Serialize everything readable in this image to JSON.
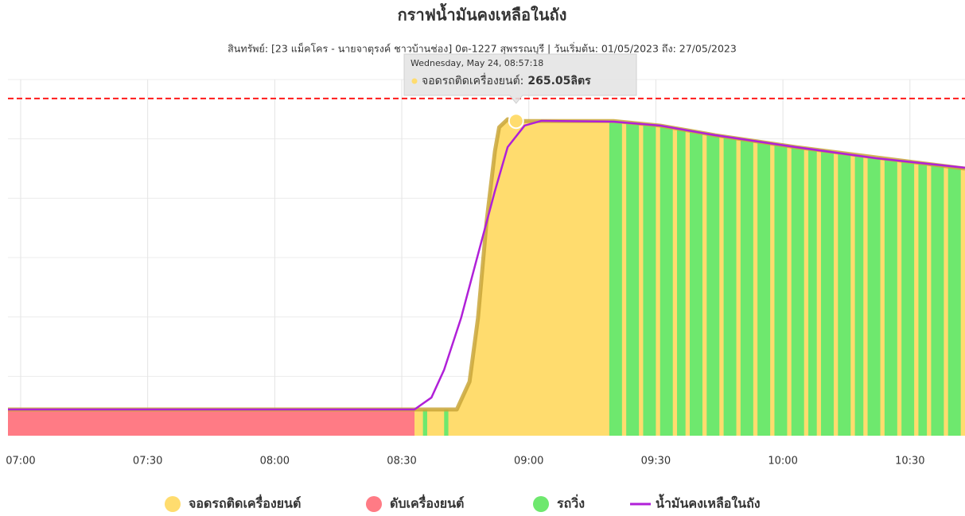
{
  "chart_data": {
    "type": "area",
    "title": "กราฟน้ำมันคงเหลือในถัง",
    "subtitle": "สินทรัพย์: [23 แม็คโคร - นายจาตุรงค์ ชาวบ้านช่อง] 0ต-1227 สุพรรณบุรี | วันเริ่มต้น: 01/05/2023 ถึง: 27/05/2023",
    "xlim": [
      "06:57",
      "10:43"
    ],
    "xticks": [
      "07:00",
      "07:30",
      "08:00",
      "08:30",
      "09:00",
      "09:30",
      "10:00",
      "10:30"
    ],
    "ylim": [
      0,
      300
    ],
    "ygrid": [
      50,
      100,
      150,
      200,
      250,
      300
    ],
    "limit": 284,
    "limit_color": "#ff1a1a",
    "reading": {
      "color": "#c9a63a",
      "x": [
        "06:57",
        "08:33",
        "08:43",
        "08:46",
        "08:48",
        "08:50",
        "08:52",
        "08:53",
        "08:55",
        "08:57",
        "09:20",
        "09:31",
        "09:44",
        "10:03",
        "10:22",
        "10:43"
      ],
      "values": [
        22.1,
        22.1,
        22.1,
        45.5,
        99.1,
        179.5,
        239.7,
        259.8,
        266.5,
        265.05,
        265.05,
        261.2,
        253.1,
        243.1,
        234.4,
        225
      ]
    },
    "states": [
      {
        "name": "จอดรถติดเครื่องยนต์",
        "color": "#ffdc6e",
        "intervals": [
          [
            "08:33",
            "10:43"
          ]
        ]
      },
      {
        "name": "ดับเครื่องยนต์",
        "color": "#ff7b85",
        "intervals": [
          [
            "06:57",
            "08:33"
          ]
        ]
      },
      {
        "name": "รถวิ่ง",
        "color": "#6ee86e",
        "intervals": [
          [
            "08:35",
            "08:36"
          ],
          [
            "08:40",
            "08:41"
          ],
          [
            "09:19",
            "09:22"
          ],
          [
            "09:23",
            "09:26"
          ],
          [
            "09:27",
            "09:30"
          ],
          [
            "09:31",
            "09:34"
          ],
          [
            "09:35",
            "09:37"
          ],
          [
            "09:38",
            "09:41"
          ],
          [
            "09:42",
            "09:45"
          ],
          [
            "09:46",
            "09:49"
          ],
          [
            "09:50",
            "09:53"
          ],
          [
            "09:54",
            "09:57"
          ],
          [
            "09:58",
            "10:01"
          ],
          [
            "10:02",
            "10:05"
          ],
          [
            "10:06",
            "10:08"
          ],
          [
            "10:09",
            "10:12"
          ],
          [
            "10:13",
            "10:16"
          ],
          [
            "10:17",
            "10:19"
          ],
          [
            "10:20",
            "10:23"
          ],
          [
            "10:24",
            "10:27"
          ],
          [
            "10:28",
            "10:31"
          ],
          [
            "10:32",
            "10:34"
          ],
          [
            "10:35",
            "10:38"
          ],
          [
            "10:39",
            "10:42"
          ]
        ]
      }
    ],
    "series": [
      {
        "name": "น้ำมันคงเหลือในถัง",
        "color": "#b020d8",
        "x": [
          "06:57",
          "08:33",
          "08:37",
          "08:40",
          "08:44",
          "08:48",
          "08:52",
          "08:55",
          "08:59",
          "09:03",
          "09:20",
          "09:31",
          "09:44",
          "10:03",
          "10:22",
          "10:43"
        ],
        "values": [
          22.1,
          22.1,
          32.1,
          55.6,
          99.1,
          152.7,
          206.2,
          243.1,
          261.2,
          265.2,
          264.5,
          261.2,
          253.1,
          243.1,
          233.7,
          225.7
        ]
      }
    ],
    "tooltip": {
      "date": "Wednesday, May 24, 08:57:18",
      "label": "จอดรถติดเครื่องยนต์:",
      "x": "08:57",
      "value": 265.05,
      "value_label": "265.05ลิตร"
    }
  }
}
